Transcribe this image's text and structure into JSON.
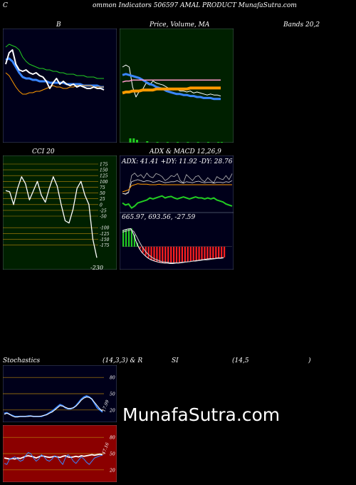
{
  "header": {
    "title_left": "C",
    "title": "ommon Indicators 506597 AMAL PRODUCT MunafaSutra.com"
  },
  "labels": {
    "bb_b": "B",
    "price_ma": "Price, Volume, MA",
    "bands": "Bands 20,2",
    "cci": "CCI 20",
    "adx_macd": "ADX & MACD 12,26,9",
    "adx_values": "ADX: 41.41 +DY: 11.92 -DY: 28.76",
    "macd_values": "665.97, 693.56, -27.59",
    "stoch": "Stochastics",
    "stoch_params": "(14,3,3) & R",
    "si": "SI",
    "rsi_params": "(14,5",
    "rsi_close": ")",
    "watermark": "MunafaSutra.com"
  },
  "colors": {
    "panel_navy": "#00001a",
    "panel_green": "#002000",
    "panel_red": "#8b0000",
    "grid_orange": "#b8860b",
    "line_white": "#ffffff",
    "line_blue": "#3a86ff",
    "line_orange": "#ff9a00",
    "line_green": "#22cc22"
  },
  "chart_data": [
    {
      "id": "bollinger",
      "type": "line",
      "x": [
        0,
        1,
        2,
        3,
        4,
        5,
        6,
        7,
        8,
        9,
        10,
        11,
        12,
        13,
        14,
        15,
        16,
        17,
        18,
        19,
        20,
        21,
        22,
        23,
        24,
        25,
        26,
        27,
        28,
        29
      ],
      "series": [
        {
          "values": [
            62,
            64,
            63,
            62,
            60,
            55,
            52,
            50,
            49,
            48,
            47,
            47,
            46,
            46,
            45,
            45,
            44,
            44,
            43,
            43,
            43,
            42,
            42,
            42,
            41,
            41,
            41,
            40,
            40,
            40
          ]
        },
        {
          "values": [
            53,
            54,
            52,
            48,
            44,
            41,
            40,
            40,
            39,
            39,
            38,
            38,
            38,
            37,
            37,
            37,
            37,
            37,
            36,
            36,
            36,
            36,
            36,
            35,
            35,
            35,
            35,
            35,
            34,
            34
          ]
        },
        {
          "values": [
            44,
            42,
            38,
            34,
            31,
            29,
            29,
            30,
            30,
            31,
            31,
            32,
            33,
            34,
            35,
            34,
            34,
            33,
            33,
            34,
            34,
            35,
            35,
            35,
            35,
            35,
            34,
            34,
            34,
            34
          ]
        },
        {
          "values": [
            50,
            58,
            60,
            50,
            46,
            45,
            46,
            44,
            43,
            44,
            42,
            41,
            38,
            33,
            37,
            40,
            36,
            38,
            36,
            35,
            36,
            34,
            35,
            34,
            33,
            33,
            34,
            33,
            33,
            32
          ]
        }
      ]
    },
    {
      "id": "price_ma",
      "type": "line",
      "x": [
        0,
        1,
        2,
        3,
        4,
        5,
        6,
        7,
        8,
        9,
        10,
        11,
        12,
        13,
        14,
        15,
        16,
        17,
        18,
        19,
        20,
        21,
        22,
        23,
        24,
        25,
        26,
        27,
        28,
        29
      ],
      "series": [
        {
          "values": [
            60,
            62,
            60,
            40,
            30,
            36,
            38,
            44,
            42,
            46,
            44,
            43,
            42,
            40,
            38,
            37,
            38,
            36,
            36,
            35,
            36,
            34,
            35,
            34,
            33,
            32,
            33,
            32,
            32,
            31
          ]
        },
        {
          "values": [
            52,
            53,
            52,
            51,
            50,
            49,
            47,
            45,
            43,
            42,
            40,
            39,
            38,
            36,
            35,
            34,
            33,
            33,
            32,
            32,
            31,
            31,
            30,
            30,
            29,
            29,
            29,
            28,
            28,
            28
          ]
        },
        {
          "values": [
            34,
            35,
            35,
            36,
            36,
            36,
            37,
            37,
            37,
            37,
            38,
            38,
            38,
            38,
            38,
            38,
            38,
            38,
            38,
            38,
            39,
            39,
            39,
            39,
            39,
            39,
            39,
            39,
            39,
            39
          ]
        },
        {
          "values": [
            45,
            46,
            46,
            47,
            47,
            47,
            47,
            47,
            47,
            47,
            47,
            47,
            47,
            47,
            47,
            47,
            47,
            47,
            47,
            47,
            47,
            47,
            47,
            47,
            47,
            47,
            47,
            47,
            47,
            47
          ]
        }
      ],
      "volume": [
        0,
        0,
        6,
        6,
        4,
        0,
        0,
        2,
        0,
        0,
        1,
        0,
        0,
        1,
        0,
        0,
        1,
        0,
        0,
        1,
        0,
        0,
        1,
        0,
        0,
        1,
        0,
        0,
        1,
        1
      ]
    },
    {
      "id": "cci",
      "type": "line",
      "ylim": [
        -275,
        175
      ],
      "yticks": [
        175,
        150,
        125,
        100,
        75,
        50,
        25,
        0,
        -25,
        -50,
        -100,
        -125,
        -150,
        -175
      ],
      "x": [
        0,
        1,
        2,
        3,
        4,
        5,
        6,
        7,
        8,
        9,
        10,
        11,
        12,
        13,
        14,
        15,
        16,
        17,
        18,
        19,
        20,
        21,
        22,
        23
      ],
      "values": [
        60,
        55,
        0,
        70,
        120,
        90,
        20,
        60,
        100,
        40,
        10,
        70,
        120,
        80,
        0,
        -70,
        -80,
        -20,
        70,
        100,
        40,
        0,
        -150,
        -230
      ],
      "last_label": "-230"
    },
    {
      "id": "adx",
      "type": "line",
      "x": [
        0,
        1,
        2,
        3,
        4,
        5,
        6,
        7,
        8,
        9,
        10,
        11,
        12,
        13,
        14,
        15,
        16,
        17,
        18,
        19,
        20,
        21,
        22,
        23,
        24,
        25,
        26,
        27,
        28,
        29,
        30,
        31,
        32,
        33,
        34,
        35,
        36
      ],
      "series": [
        {
          "values": [
            5,
            3,
            6,
            40,
            45,
            38,
            42,
            35,
            45,
            38,
            36,
            44,
            42,
            38,
            30,
            34,
            40,
            38,
            44,
            30,
            26,
            42,
            36,
            30,
            38,
            40,
            32,
            28,
            36,
            30,
            26,
            38,
            34,
            32,
            40,
            32,
            44
          ]
        },
        {
          "values": [
            5,
            4,
            8,
            28,
            30,
            32,
            30,
            28,
            30,
            29,
            27,
            28,
            30,
            28,
            26,
            27,
            28,
            28,
            30,
            27,
            25,
            28,
            27,
            26,
            28,
            29,
            27,
            26,
            27,
            27,
            25,
            27,
            27,
            26,
            28,
            27,
            30
          ]
        },
        {
          "values": [
            8,
            10,
            12,
            20,
            22,
            24,
            23,
            23,
            23,
            22,
            22,
            22,
            23,
            22,
            22,
            22,
            22,
            22,
            22,
            22,
            22,
            22,
            22,
            22,
            22,
            22,
            22,
            22,
            22,
            22,
            22,
            22,
            22,
            22,
            22,
            22,
            22
          ]
        },
        {
          "values": [
            -14,
            -18,
            -16,
            -24,
            -20,
            -14,
            -12,
            -10,
            -8,
            -4,
            -6,
            -4,
            -2,
            0,
            -4,
            -2,
            -1,
            -4,
            -6,
            -4,
            -2,
            -4,
            -6,
            -4,
            -2,
            -4,
            -4,
            -6,
            -4,
            -6,
            -4,
            -8,
            -10,
            -12,
            -16,
            -18,
            -20
          ]
        }
      ]
    },
    {
      "id": "macd",
      "type": "line",
      "x": [
        0,
        1,
        2,
        3,
        4,
        5,
        6,
        7,
        8,
        9,
        10,
        11,
        12,
        13,
        14,
        15,
        16,
        17,
        18,
        19,
        20,
        21,
        22,
        23,
        24,
        25,
        26,
        27,
        28,
        29,
        30,
        31,
        32,
        33,
        34,
        35,
        36
      ],
      "series": [
        {
          "values": [
            40,
            42,
            44,
            45,
            30,
            10,
            -5,
            -15,
            -22,
            -28,
            -32,
            -35,
            -37,
            -39,
            -40,
            -41,
            -41,
            -42,
            -42,
            -41,
            -41,
            -40,
            -39,
            -38,
            -37,
            -36,
            -35,
            -34,
            -33,
            -32,
            -31,
            -30,
            -30,
            -29,
            -28,
            -28,
            -27
          ]
        },
        {
          "values": [
            36,
            38,
            40,
            42,
            38,
            26,
            12,
            0,
            -10,
            -18,
            -24,
            -29,
            -32,
            -35,
            -37,
            -38,
            -39,
            -40,
            -40,
            -40,
            -40,
            -39,
            -38,
            -38,
            -37,
            -36,
            -36,
            -35,
            -34,
            -33,
            -33,
            -32,
            -31,
            -30,
            -29,
            -29,
            -28
          ]
        }
      ],
      "histogram": [
        4,
        4,
        4,
        3,
        3,
        3,
        3,
        3,
        3,
        3,
        3,
        3,
        3,
        3,
        3,
        3,
        3,
        3,
        3,
        3,
        3,
        3,
        3,
        3,
        3,
        3,
        3,
        3,
        3,
        3,
        3,
        3,
        3,
        3,
        3,
        3,
        3
      ]
    },
    {
      "id": "stochastics",
      "type": "line",
      "ylim": [
        0,
        100
      ],
      "yticks": [
        80,
        50,
        20
      ],
      "x": [
        0,
        1,
        2,
        3,
        4,
        5,
        6,
        7,
        8,
        9,
        10,
        11,
        12,
        13,
        14,
        15,
        16,
        17,
        18,
        19,
        20,
        21,
        22,
        23,
        24,
        25,
        26,
        27,
        28,
        29,
        30,
        31,
        32,
        33,
        34,
        35,
        36,
        37
      ],
      "series": [
        {
          "values": [
            14,
            15,
            12,
            10,
            8,
            8,
            8,
            8,
            8,
            9,
            9,
            8,
            8,
            8,
            8,
            10,
            12,
            15,
            18,
            22,
            26,
            30,
            28,
            24,
            22,
            22,
            24,
            28,
            34,
            40,
            44,
            46,
            44,
            40,
            32,
            24,
            20,
            16
          ]
        },
        {
          "values": [
            12,
            14,
            12,
            9,
            7,
            7,
            8,
            8,
            8,
            8,
            9,
            8,
            8,
            8,
            9,
            10,
            11,
            14,
            16,
            20,
            24,
            28,
            27,
            25,
            23,
            23,
            24,
            27,
            32,
            38,
            42,
            44,
            43,
            40,
            34,
            28,
            22,
            18
          ]
        }
      ],
      "last_label": "17.99"
    },
    {
      "id": "rsi",
      "type": "line",
      "ylim": [
        0,
        100
      ],
      "yticks": [
        80,
        50,
        20
      ],
      "x": [
        0,
        1,
        2,
        3,
        4,
        5,
        6,
        7,
        8,
        9,
        10,
        11,
        12,
        13,
        14,
        15,
        16,
        17,
        18,
        19,
        20,
        21,
        22,
        23,
        24,
        25,
        26,
        27,
        28,
        29,
        30,
        31,
        32,
        33,
        34,
        35,
        36,
        37
      ],
      "series": [
        {
          "values": [
            42,
            41,
            40,
            41,
            40,
            42,
            41,
            43,
            45,
            46,
            45,
            44,
            42,
            44,
            46,
            45,
            44,
            43,
            44,
            45,
            44,
            43,
            45,
            46,
            44,
            43,
            44,
            45,
            44,
            46,
            45,
            46,
            47,
            48,
            47,
            48,
            49,
            48
          ]
        },
        {
          "values": [
            32,
            30,
            40,
            42,
            44,
            40,
            36,
            38,
            46,
            52,
            50,
            42,
            36,
            40,
            48,
            44,
            38,
            36,
            40,
            46,
            44,
            36,
            30,
            42,
            48,
            44,
            36,
            32,
            38,
            44,
            40,
            34,
            30,
            36,
            42,
            44,
            46,
            47
          ]
        }
      ],
      "last_label": "47.16"
    }
  ]
}
